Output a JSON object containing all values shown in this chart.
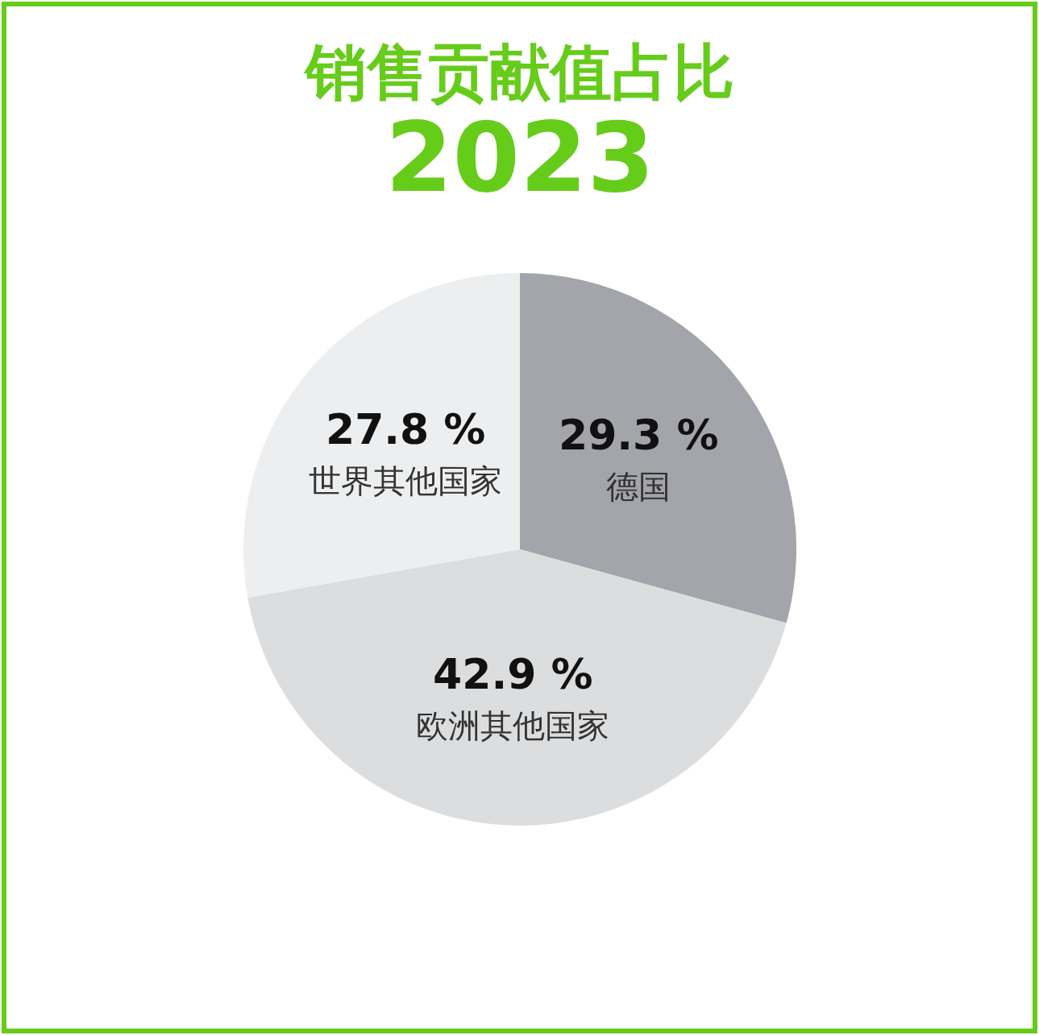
{
  "chart_data": {
    "type": "pie",
    "title": "销售贡献值占比",
    "subtitle": "2023",
    "categories": [
      "德国",
      "欧洲其他国家",
      "世界其他国家"
    ],
    "values": [
      29.3,
      42.9,
      27.8
    ],
    "value_labels": [
      "29.3 %",
      "42.9 %",
      "27.8 %"
    ],
    "colors": [
      "#a3a5aa",
      "#dcddde",
      "#edeeef"
    ]
  }
}
